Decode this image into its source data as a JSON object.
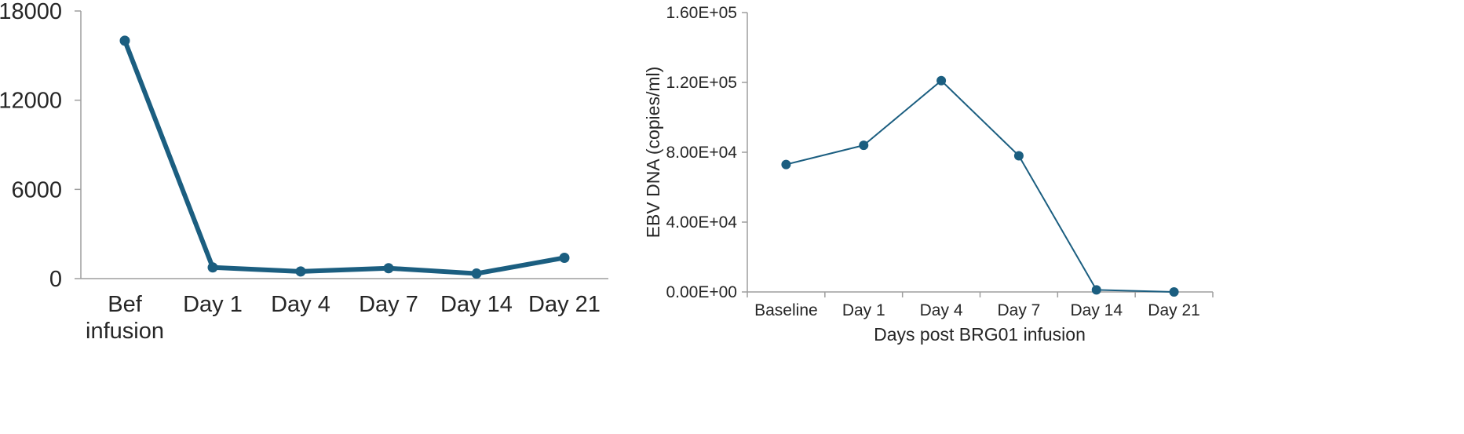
{
  "colors": {
    "series": "#1b5e80",
    "axis": "#9e9e9e",
    "text": "#262626",
    "background": "#ffffff"
  },
  "chart_data": [
    {
      "type": "line",
      "title": "",
      "xlabel": "",
      "ylabel": "",
      "categories": [
        "Bef infusion",
        "Day 1",
        "Day 4",
        "Day 7",
        "Day 14",
        "Day 21"
      ],
      "category_lines": [
        [
          "Bef",
          "infusion"
        ],
        [
          "Day 1"
        ],
        [
          "Day 4"
        ],
        [
          "Day 7"
        ],
        [
          "Day 14"
        ],
        [
          "Day 21"
        ]
      ],
      "series": [
        {
          "values": [
            16000,
            750,
            480,
            700,
            340,
            1400
          ]
        }
      ],
      "ylim": [
        0,
        18000
      ],
      "yticks": [
        0,
        6000,
        12000,
        18000
      ],
      "ytick_labels": [
        "0",
        "6000",
        "12000",
        "18000"
      ],
      "grid": false,
      "legend": "none"
    },
    {
      "type": "line",
      "title": "",
      "xlabel": "Days post BRG01 infusion",
      "ylabel": "EBV DNA (copies/ml)",
      "categories": [
        "Baseline",
        "Day 1",
        "Day 4",
        "Day 7",
        "Day 14",
        "Day 21"
      ],
      "series": [
        {
          "values": [
            73000,
            84000,
            121000,
            78000,
            1200,
            0
          ]
        }
      ],
      "ylim": [
        0,
        160000
      ],
      "yticks": [
        0,
        40000,
        80000,
        120000,
        160000
      ],
      "ytick_labels": [
        "0.00E+00",
        "4.00E+04",
        "8.00E+04",
        "1.20E+05",
        "1.60E+05"
      ],
      "grid": false,
      "legend": "none"
    }
  ]
}
